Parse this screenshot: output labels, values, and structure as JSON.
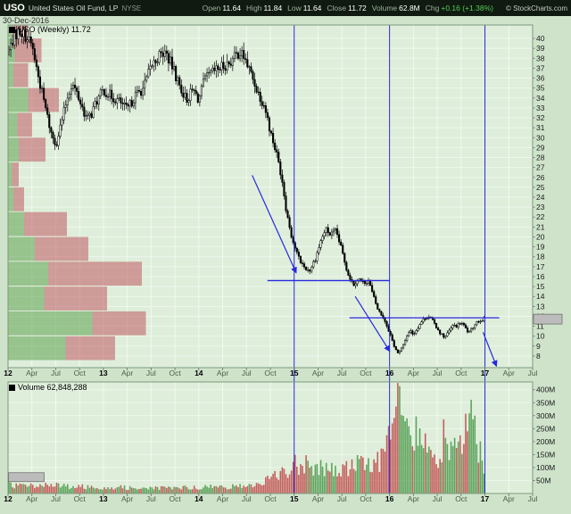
{
  "header": {
    "symbol": "USO",
    "name": "United States Oil Fund, LP",
    "exchange": "NYSE",
    "date": "30-Dec-2016",
    "copyright": "© StockCharts.com",
    "quote_fields": [
      {
        "key": "open",
        "label": "Open",
        "value": "11.64"
      },
      {
        "key": "high",
        "label": "High",
        "value": "11.84"
      },
      {
        "key": "low",
        "label": "Low",
        "value": "11.64"
      },
      {
        "key": "close",
        "label": "Close",
        "value": "11.72"
      },
      {
        "key": "volume",
        "label": "Volume",
        "value": "62.8M"
      },
      {
        "key": "chg",
        "label": "Chg",
        "value": "+0.16 (+1.38%)",
        "positive": true
      }
    ]
  },
  "price_panel": {
    "legend": "USO (Weekly) 11.72",
    "last_price_tag": "11.72"
  },
  "volume_panel": {
    "legend": "Volume 62,848,288",
    "value_tag": "62848288"
  },
  "palette": {
    "background": "#cfe3cb",
    "plot_background": "#deeeda",
    "grid": "#ffffff",
    "candle": "#000000",
    "candle_up_fill": "#f4fbf2",
    "volume_up": "#4e9b4e",
    "volume_down": "#c14f4f",
    "vbp_bull": "#5ca04f",
    "vbp_bear": "#c05a63",
    "annotation_blue": "#2828e0",
    "header_bg": "#101a10",
    "chg_positive": "#55cc55",
    "tag_bg": "#bcbcbc",
    "axis_text": "#1a1a1a",
    "month_text": "#4a5d4a",
    "border": "#7d997d"
  },
  "chart_data": {
    "type": "candlestick",
    "title": "USO (Weekly) 11.72",
    "x_domain_years": [
      2012.0,
      2017.5
    ],
    "price_axis": {
      "scale": "linear",
      "min": 6.83,
      "max": 41.35,
      "tick_start": 8,
      "tick_end": 40,
      "tick_step": 1
    },
    "volume_axis": {
      "max_millions": 430,
      "ticks_millions": [
        50,
        100,
        150,
        200,
        250,
        300,
        350,
        400
      ],
      "unit": "M"
    },
    "x_ticks": [
      {
        "t": 2012.0,
        "label": "12",
        "year": true
      },
      {
        "t": 2012.25,
        "label": "Apr"
      },
      {
        "t": 2012.5,
        "label": "Jul"
      },
      {
        "t": 2012.75,
        "label": "Oct"
      },
      {
        "t": 2013.0,
        "label": "13",
        "year": true
      },
      {
        "t": 2013.25,
        "label": "Apr"
      },
      {
        "t": 2013.5,
        "label": "Jul"
      },
      {
        "t": 2013.75,
        "label": "Oct"
      },
      {
        "t": 2014.0,
        "label": "14",
        "year": true
      },
      {
        "t": 2014.25,
        "label": "Apr"
      },
      {
        "t": 2014.5,
        "label": "Jul"
      },
      {
        "t": 2014.75,
        "label": "Oct"
      },
      {
        "t": 2015.0,
        "label": "15",
        "year": true
      },
      {
        "t": 2015.25,
        "label": "Apr"
      },
      {
        "t": 2015.5,
        "label": "Jul"
      },
      {
        "t": 2015.75,
        "label": "Oct"
      },
      {
        "t": 2016.0,
        "label": "16",
        "year": true
      },
      {
        "t": 2016.25,
        "label": "Apr"
      },
      {
        "t": 2016.5,
        "label": "Jul"
      },
      {
        "t": 2016.75,
        "label": "Oct"
      },
      {
        "t": 2017.0,
        "label": "17",
        "year": true
      },
      {
        "t": 2017.25,
        "label": "Apr"
      },
      {
        "t": 2017.5,
        "label": "Jul"
      }
    ],
    "weekly_close_anchors": [
      [
        2012.0,
        38.5
      ],
      [
        2012.06,
        40.2
      ],
      [
        2012.12,
        40.8
      ],
      [
        2012.18,
        40.3
      ],
      [
        2012.25,
        39.3
      ],
      [
        2012.31,
        36.5
      ],
      [
        2012.38,
        33.5
      ],
      [
        2012.45,
        30.5
      ],
      [
        2012.5,
        29.3
      ],
      [
        2012.56,
        31.5
      ],
      [
        2012.62,
        34.0
      ],
      [
        2012.67,
        35.5
      ],
      [
        2012.72,
        34.5
      ],
      [
        2012.78,
        33.0
      ],
      [
        2012.83,
        31.8
      ],
      [
        2012.88,
        32.5
      ],
      [
        2012.92,
        33.5
      ],
      [
        2013.0,
        34.8
      ],
      [
        2013.08,
        34.2
      ],
      [
        2013.17,
        33.6
      ],
      [
        2013.25,
        32.8
      ],
      [
        2013.33,
        34.2
      ],
      [
        2013.42,
        35.0
      ],
      [
        2013.5,
        37.2
      ],
      [
        2013.58,
        38.2
      ],
      [
        2013.65,
        38.6
      ],
      [
        2013.72,
        37.2
      ],
      [
        2013.8,
        35.2
      ],
      [
        2013.87,
        33.8
      ],
      [
        2013.94,
        34.8
      ],
      [
        2014.0,
        33.8
      ],
      [
        2014.06,
        35.8
      ],
      [
        2014.15,
        36.6
      ],
      [
        2014.25,
        37.2
      ],
      [
        2014.33,
        37.6
      ],
      [
        2014.42,
        38.6
      ],
      [
        2014.47,
        38.2
      ],
      [
        2014.54,
        36.6
      ],
      [
        2014.62,
        34.6
      ],
      [
        2014.69,
        33.2
      ],
      [
        2014.75,
        30.6
      ],
      [
        2014.81,
        28.6
      ],
      [
        2014.87,
        26.0
      ],
      [
        2014.92,
        22.5
      ],
      [
        2014.98,
        19.8
      ],
      [
        2015.04,
        18.0
      ],
      [
        2015.1,
        17.0
      ],
      [
        2015.16,
        16.6
      ],
      [
        2015.22,
        17.8
      ],
      [
        2015.28,
        19.6
      ],
      [
        2015.33,
        20.8
      ],
      [
        2015.38,
        20.2
      ],
      [
        2015.44,
        20.6
      ],
      [
        2015.5,
        18.6
      ],
      [
        2015.56,
        16.4
      ],
      [
        2015.62,
        15.2
      ],
      [
        2015.67,
        15.8
      ],
      [
        2015.72,
        15.4
      ],
      [
        2015.78,
        15.6
      ],
      [
        2015.83,
        14.0
      ],
      [
        2015.88,
        12.6
      ],
      [
        2015.94,
        11.8
      ],
      [
        2016.0,
        10.4
      ],
      [
        2016.04,
        9.2
      ],
      [
        2016.09,
        8.2
      ],
      [
        2016.13,
        8.8
      ],
      [
        2016.17,
        9.8
      ],
      [
        2016.21,
        10.6
      ],
      [
        2016.25,
        10.2
      ],
      [
        2016.29,
        10.8
      ],
      [
        2016.33,
        11.4
      ],
      [
        2016.38,
        11.9
      ],
      [
        2016.42,
        12.0
      ],
      [
        2016.46,
        11.4
      ],
      [
        2016.5,
        10.8
      ],
      [
        2016.54,
        10.2
      ],
      [
        2016.58,
        9.9
      ],
      [
        2016.63,
        10.6
      ],
      [
        2016.67,
        11.1
      ],
      [
        2016.71,
        11.0
      ],
      [
        2016.75,
        11.4
      ],
      [
        2016.79,
        10.9
      ],
      [
        2016.83,
        10.3
      ],
      [
        2016.87,
        10.8
      ],
      [
        2016.9,
        11.4
      ],
      [
        2016.94,
        11.6
      ],
      [
        2016.98,
        11.72
      ]
    ],
    "volume_anchors_millions": [
      [
        2012.0,
        32
      ],
      [
        2012.2,
        30
      ],
      [
        2012.4,
        34
      ],
      [
        2012.5,
        30
      ],
      [
        2012.7,
        26
      ],
      [
        2013.0,
        24
      ],
      [
        2013.3,
        22
      ],
      [
        2013.6,
        20
      ],
      [
        2014.0,
        24
      ],
      [
        2014.4,
        26
      ],
      [
        2014.6,
        34
      ],
      [
        2014.75,
        55
      ],
      [
        2014.85,
        75
      ],
      [
        2014.95,
        100
      ],
      [
        2015.05,
        115
      ],
      [
        2015.15,
        125
      ],
      [
        2015.25,
        100
      ],
      [
        2015.35,
        90
      ],
      [
        2015.45,
        85
      ],
      [
        2015.55,
        95
      ],
      [
        2015.65,
        115
      ],
      [
        2015.75,
        100
      ],
      [
        2015.85,
        125
      ],
      [
        2015.95,
        150
      ],
      [
        2016.0,
        200
      ],
      [
        2016.05,
        280
      ],
      [
        2016.09,
        420
      ],
      [
        2016.13,
        310
      ],
      [
        2016.18,
        260
      ],
      [
        2016.25,
        230
      ],
      [
        2016.3,
        200
      ],
      [
        2016.38,
        175
      ],
      [
        2016.45,
        160
      ],
      [
        2016.5,
        155
      ],
      [
        2016.58,
        215
      ],
      [
        2016.65,
        160
      ],
      [
        2016.72,
        175
      ],
      [
        2016.79,
        200
      ],
      [
        2016.83,
        300
      ],
      [
        2016.86,
        370
      ],
      [
        2016.9,
        200
      ],
      [
        2016.95,
        150
      ],
      [
        2016.98,
        120
      ]
    ],
    "volume_by_price": [
      {
        "price_low": 40.0,
        "price_high": 42.5,
        "bullish": 3,
        "bearish": 12
      },
      {
        "price_low": 37.5,
        "price_high": 40.0,
        "bullish": 5,
        "bearish": 20
      },
      {
        "price_low": 35.0,
        "price_high": 37.5,
        "bullish": 4,
        "bearish": 11
      },
      {
        "price_low": 32.5,
        "price_high": 35.0,
        "bullish": 15,
        "bearish": 23
      },
      {
        "price_low": 30.0,
        "price_high": 32.5,
        "bullish": 7,
        "bearish": 11
      },
      {
        "price_low": 27.5,
        "price_high": 30.0,
        "bullish": 8,
        "bearish": 20
      },
      {
        "price_low": 25.0,
        "price_high": 27.5,
        "bullish": 3,
        "bearish": 5
      },
      {
        "price_low": 22.5,
        "price_high": 25.0,
        "bullish": 4,
        "bearish": 8
      },
      {
        "price_low": 20.0,
        "price_high": 22.5,
        "bullish": 12,
        "bearish": 32
      },
      {
        "price_low": 17.5,
        "price_high": 20.0,
        "bullish": 20,
        "bearish": 40
      },
      {
        "price_low": 15.0,
        "price_high": 17.5,
        "bullish": 30,
        "bearish": 70
      },
      {
        "price_low": 12.5,
        "price_high": 15.0,
        "bullish": 27,
        "bearish": 47
      },
      {
        "price_low": 10.0,
        "price_high": 12.5,
        "bullish": 63,
        "bearish": 40
      },
      {
        "price_low": 7.5,
        "price_high": 10.0,
        "bullish": 43,
        "bearish": 37
      }
    ],
    "annotations": {
      "vlines_years": [
        2015.0,
        2016.0,
        2017.0
      ],
      "hlines": [
        {
          "price": 15.6,
          "from_year": 2014.72,
          "to_year": 2016.0
        },
        {
          "price": 11.85,
          "from_year": 2015.58,
          "to_year": 2017.15
        }
      ],
      "arrows": [
        {
          "from": [
            2014.56,
            26.2
          ],
          "to": [
            2015.02,
            16.4
          ]
        },
        {
          "from": [
            2015.64,
            14.0
          ],
          "to": [
            2016.0,
            8.5
          ]
        },
        {
          "from": [
            2016.98,
            10.4
          ],
          "to": [
            2017.12,
            7.0
          ]
        }
      ]
    }
  }
}
